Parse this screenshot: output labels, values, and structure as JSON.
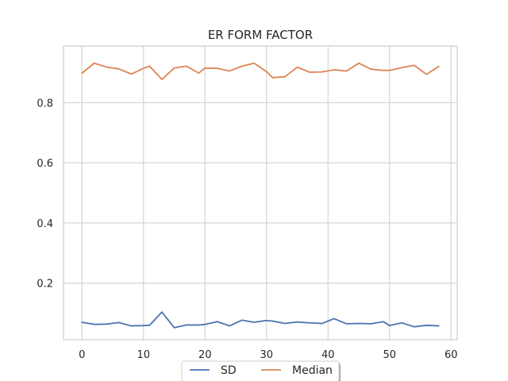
{
  "chart_data": {
    "type": "line",
    "title": "ER FORM FACTOR",
    "xlabel": "",
    "ylabel": "",
    "xlim": [
      -3,
      61
    ],
    "ylim": [
      0.012,
      0.988
    ],
    "xticks": [
      0,
      10,
      20,
      30,
      40,
      50,
      60
    ],
    "yticks": [
      0.2,
      0.4,
      0.6,
      0.8
    ],
    "grid": true,
    "legend_position": "bottom-center",
    "x": [
      0,
      2,
      4,
      6,
      8,
      10,
      11,
      13,
      15,
      17,
      19,
      20,
      22,
      24,
      26,
      28,
      30,
      31,
      33,
      35,
      37,
      39,
      41,
      43,
      45,
      47,
      49,
      50,
      52,
      54,
      56,
      58
    ],
    "series": [
      {
        "name": "SD",
        "color": "#4c72b0",
        "values": [
          0.07,
          0.063,
          0.064,
          0.069,
          0.058,
          0.059,
          0.06,
          0.104,
          0.052,
          0.061,
          0.061,
          0.063,
          0.072,
          0.058,
          0.077,
          0.07,
          0.076,
          0.074,
          0.066,
          0.071,
          0.068,
          0.066,
          0.082,
          0.065,
          0.066,
          0.065,
          0.072,
          0.059,
          0.068,
          0.055,
          0.06,
          0.058
        ]
      },
      {
        "name": "Median",
        "color": "#dd8452",
        "values": [
          0.898,
          0.931,
          0.918,
          0.912,
          0.895,
          0.914,
          0.921,
          0.877,
          0.915,
          0.921,
          0.898,
          0.915,
          0.914,
          0.905,
          0.921,
          0.931,
          0.903,
          0.883,
          0.886,
          0.918,
          0.901,
          0.902,
          0.909,
          0.905,
          0.931,
          0.911,
          0.907,
          0.907,
          0.916,
          0.924,
          0.894,
          0.92
        ]
      }
    ]
  }
}
